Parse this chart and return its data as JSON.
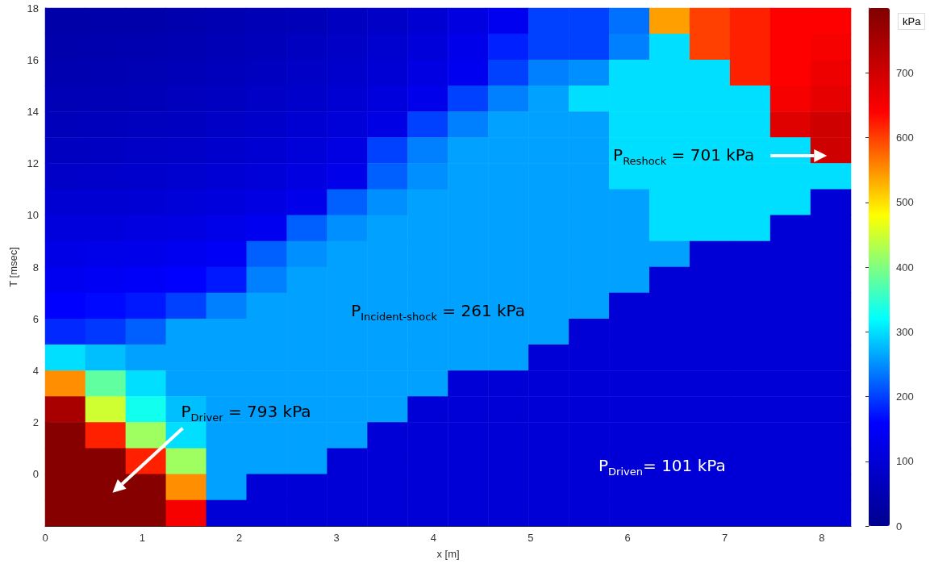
{
  "chart_data": {
    "type": "heatmap",
    "xlabel": "x [m]",
    "ylabel": "T [msec]",
    "clabel": "kPa",
    "xlim": [
      0,
      8.3
    ],
    "xticks": [
      0,
      1,
      2,
      3,
      4,
      5,
      6,
      7,
      8
    ],
    "ylim": [
      -2,
      18
    ],
    "yticks": [
      0,
      2,
      4,
      6,
      8,
      10,
      12,
      14,
      16,
      18
    ],
    "clim": [
      0,
      800
    ],
    "cticks": [
      0,
      100,
      200,
      300,
      400,
      500,
      600,
      700
    ],
    "cells": [
      [
        35,
        38,
        40,
        45,
        50,
        55,
        60,
        70,
        80,
        95,
        115,
        140,
        200,
        200,
        230,
        540,
        600,
        620,
        640,
        640
      ],
      [
        42,
        45,
        48,
        52,
        57,
        63,
        70,
        80,
        92,
        108,
        130,
        180,
        200,
        200,
        240,
        300,
        600,
        620,
        640,
        650
      ],
      [
        48,
        50,
        54,
        58,
        64,
        70,
        78,
        88,
        100,
        118,
        140,
        200,
        240,
        250,
        300,
        300,
        300,
        620,
        640,
        660
      ],
      [
        55,
        57,
        60,
        65,
        70,
        78,
        86,
        96,
        110,
        130,
        200,
        240,
        261,
        300,
        300,
        300,
        300,
        300,
        650,
        670
      ],
      [
        62,
        64,
        68,
        72,
        78,
        86,
        95,
        106,
        122,
        200,
        240,
        261,
        261,
        261,
        300,
        300,
        300,
        300,
        680,
        701
      ],
      [
        72,
        74,
        78,
        82,
        88,
        96,
        106,
        120,
        200,
        240,
        261,
        261,
        261,
        261,
        300,
        300,
        300,
        300,
        300,
        701
      ],
      [
        82,
        84,
        88,
        92,
        98,
        106,
        116,
        130,
        220,
        250,
        261,
        261,
        261,
        261,
        300,
        300,
        300,
        300,
        300,
        300
      ],
      [
        95,
        97,
        100,
        105,
        112,
        120,
        132,
        220,
        250,
        261,
        261,
        261,
        261,
        261,
        261,
        300,
        300,
        300,
        300,
        101
      ],
      [
        110,
        112,
        115,
        120,
        128,
        140,
        220,
        250,
        261,
        261,
        261,
        261,
        261,
        261,
        261,
        300,
        300,
        300,
        101,
        101
      ],
      [
        125,
        128,
        132,
        138,
        148,
        220,
        250,
        261,
        261,
        261,
        261,
        261,
        261,
        261,
        261,
        261,
        101,
        101,
        101,
        101
      ],
      [
        140,
        145,
        150,
        160,
        175,
        240,
        261,
        261,
        261,
        261,
        261,
        261,
        261,
        261,
        261,
        101,
        101,
        101,
        101,
        101
      ],
      [
        160,
        165,
        175,
        200,
        240,
        261,
        261,
        261,
        261,
        261,
        261,
        261,
        261,
        261,
        101,
        101,
        101,
        101,
        101,
        101
      ],
      [
        185,
        195,
        220,
        261,
        261,
        261,
        261,
        261,
        261,
        261,
        261,
        261,
        261,
        101,
        101,
        101,
        101,
        101,
        101,
        101
      ],
      [
        300,
        280,
        261,
        261,
        261,
        261,
        261,
        261,
        261,
        261,
        261,
        261,
        101,
        101,
        101,
        101,
        101,
        101,
        101,
        101
      ],
      [
        550,
        380,
        300,
        261,
        261,
        261,
        261,
        261,
        261,
        261,
        101,
        101,
        101,
        101,
        101,
        101,
        101,
        101,
        101,
        101
      ],
      [
        750,
        450,
        330,
        280,
        261,
        261,
        261,
        261,
        261,
        101,
        101,
        101,
        101,
        101,
        101,
        101,
        101,
        101,
        101,
        101
      ],
      [
        793,
        620,
        420,
        300,
        261,
        261,
        261,
        261,
        101,
        101,
        101,
        101,
        101,
        101,
        101,
        101,
        101,
        101,
        101,
        101
      ],
      [
        793,
        793,
        620,
        420,
        261,
        261,
        261,
        101,
        101,
        101,
        101,
        101,
        101,
        101,
        101,
        101,
        101,
        101,
        101,
        101
      ],
      [
        793,
        793,
        793,
        550,
        261,
        101,
        101,
        101,
        101,
        101,
        101,
        101,
        101,
        101,
        101,
        101,
        101,
        101,
        101,
        101
      ],
      [
        793,
        793,
        793,
        650,
        101,
        101,
        101,
        101,
        101,
        101,
        101,
        101,
        101,
        101,
        101,
        101,
        101,
        101,
        101,
        101
      ]
    ],
    "annotations": [
      "P$_{Reshock}$ = 701 kPa",
      "P$_{Incident-shock}$ = 261 kPa",
      "P$_{Driver}$ = 793 kPa",
      "P$_{Driven}$= 101 kPa"
    ]
  }
}
